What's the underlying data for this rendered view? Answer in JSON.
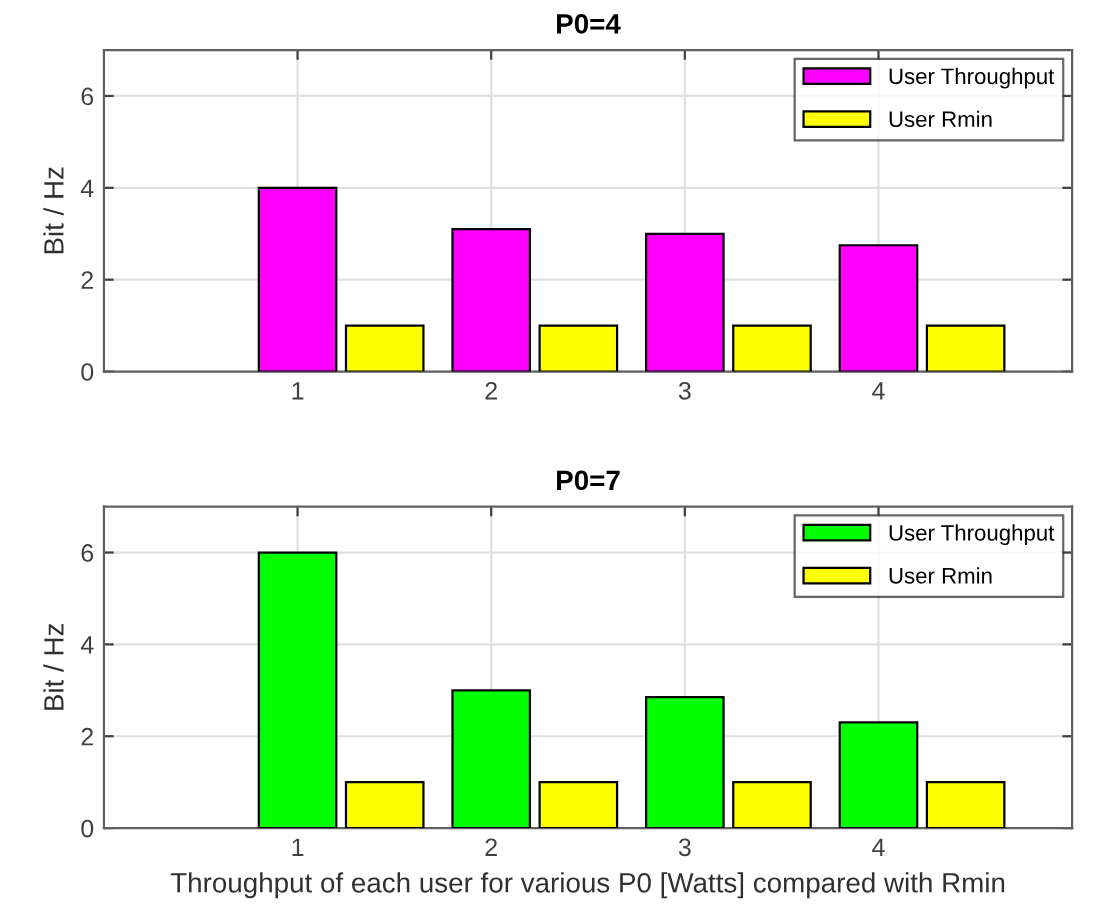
{
  "chart_data": [
    {
      "type": "bar",
      "title": "P0=4",
      "ylabel": "Bit / Hz",
      "xlim": [
        0,
        5
      ],
      "xticks": [
        1,
        2,
        3,
        4
      ],
      "ylim": [
        0,
        7
      ],
      "yticks": [
        0,
        2,
        4,
        6
      ],
      "grid": true,
      "legend": "top right",
      "series": [
        {
          "name": "User Throughput",
          "color": "#ff00ff",
          "x": [
            1,
            2,
            3,
            4
          ],
          "values": [
            4.0,
            3.1,
            3.0,
            2.75
          ]
        },
        {
          "name": "User Rmin",
          "color": "#ffff00",
          "x": [
            1.45,
            2.45,
            3.45,
            4.45
          ],
          "values": [
            1,
            1,
            1,
            1
          ]
        }
      ]
    },
    {
      "type": "bar",
      "title": "P0=7",
      "ylabel": "Bit / Hz",
      "xlabel": "Throughput of each user for various P0 [Watts] compared with Rmin",
      "xlim": [
        0,
        5
      ],
      "xticks": [
        1,
        2,
        3,
        4
      ],
      "ylim": [
        0,
        7
      ],
      "yticks": [
        0,
        2,
        4,
        6
      ],
      "grid": true,
      "legend": "top right",
      "series": [
        {
          "name": "User Throughput",
          "color": "#00ff00",
          "x": [
            1,
            2,
            3,
            4
          ],
          "values": [
            6.0,
            3.0,
            2.85,
            2.3
          ]
        },
        {
          "name": "User Rmin",
          "color": "#ffff00",
          "x": [
            1.45,
            2.45,
            3.45,
            4.45
          ],
          "values": [
            1,
            1,
            1,
            1
          ]
        }
      ]
    }
  ]
}
